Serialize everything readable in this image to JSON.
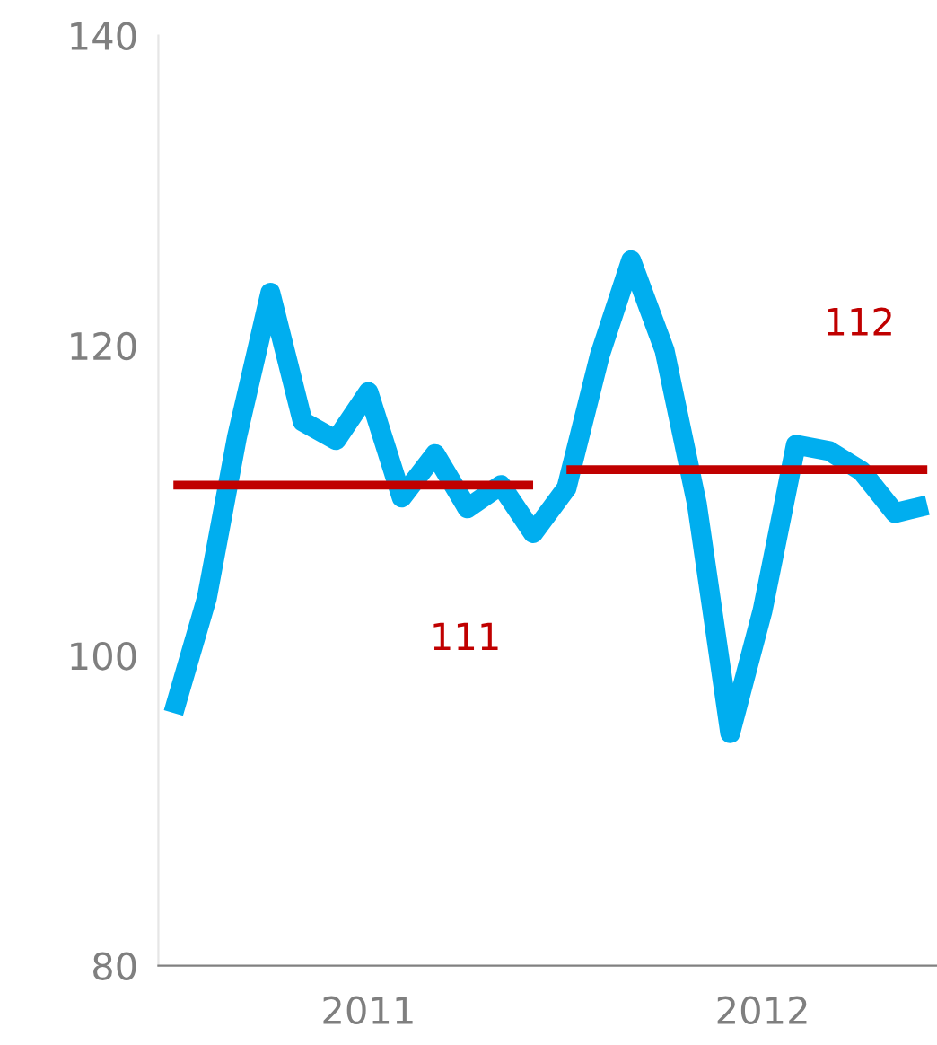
{
  "chart_data": {
    "type": "line",
    "x": [
      "2011-01",
      "2011-02",
      "2011-03",
      "2011-04",
      "2011-05",
      "2011-06",
      "2011-07",
      "2011-08",
      "2011-09",
      "2011-10",
      "2011-11",
      "2011-12",
      "2012-01",
      "2012-02",
      "2012-03",
      "2012-04",
      "2012-05",
      "2012-06",
      "2012-07",
      "2012-08",
      "2012-09",
      "2012-10",
      "2012-11",
      "2012-12"
    ],
    "series": [
      {
        "color": "#00aeef",
        "values": [
          96.3,
          103.7,
          114.1,
          123.4,
          115.1,
          113.9,
          117.0,
          110.2,
          113.0,
          109.5,
          111.0,
          107.9,
          110.8,
          119.4,
          125.5,
          119.7,
          109.8,
          95.0,
          102.9,
          113.6,
          113.2,
          111.9,
          109.2,
          109.7
        ]
      },
      {
        "color": "#c00000",
        "x": [
          "2011-01",
          "2011-12"
        ],
        "values": [
          111,
          111
        ]
      },
      {
        "color": "#c00000",
        "x": [
          "2012-01",
          "2012-12"
        ],
        "values": [
          112,
          112
        ]
      }
    ],
    "annotations": [
      "111",
      "112"
    ],
    "xlim": [
      "2010-12-18",
      "2012-12-10"
    ],
    "xticks": [
      {
        "value": "2011-07-01",
        "label": "2011"
      },
      {
        "value": "2012-07-01",
        "label": "2012"
      }
    ],
    "ylim": [
      80,
      140
    ],
    "yticks": [
      80,
      100,
      120,
      140
    ],
    "grid": false,
    "legend": false,
    "marker": "none",
    "line_style": "solid"
  }
}
